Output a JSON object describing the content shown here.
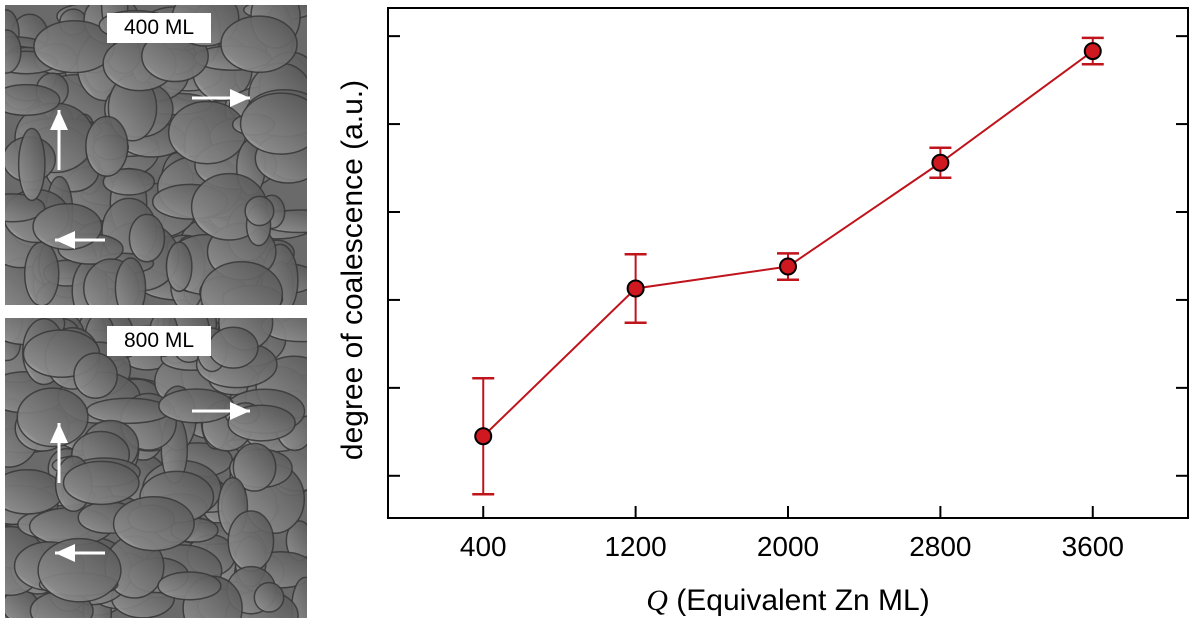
{
  "panels": [
    {
      "label": "400 ML"
    },
    {
      "label": "800 ML"
    }
  ],
  "chart_data": {
    "type": "line",
    "xlabel_symbol": "Q",
    "xlabel": "(Equivalent Zn ML)",
    "ylabel": "degree of coalescence (a.u.)",
    "x": [
      400,
      1200,
      2000,
      2800,
      3600
    ],
    "xticks": [
      "400",
      "1200",
      "2000",
      "2800",
      "3600"
    ],
    "xlim": [
      -100,
      4100
    ],
    "ylim": [
      -0.48,
      5.32
    ],
    "yticks_count": 6,
    "y_tick_labels_shown": false,
    "series": [
      {
        "values": [
          0.45,
          2.13,
          2.38,
          3.56,
          4.83
        ],
        "errors": [
          0.66,
          0.39,
          0.15,
          0.17,
          0.15
        ],
        "color": "#c0141c",
        "marker_fill": "#d01820"
      }
    ],
    "grid": false
  }
}
